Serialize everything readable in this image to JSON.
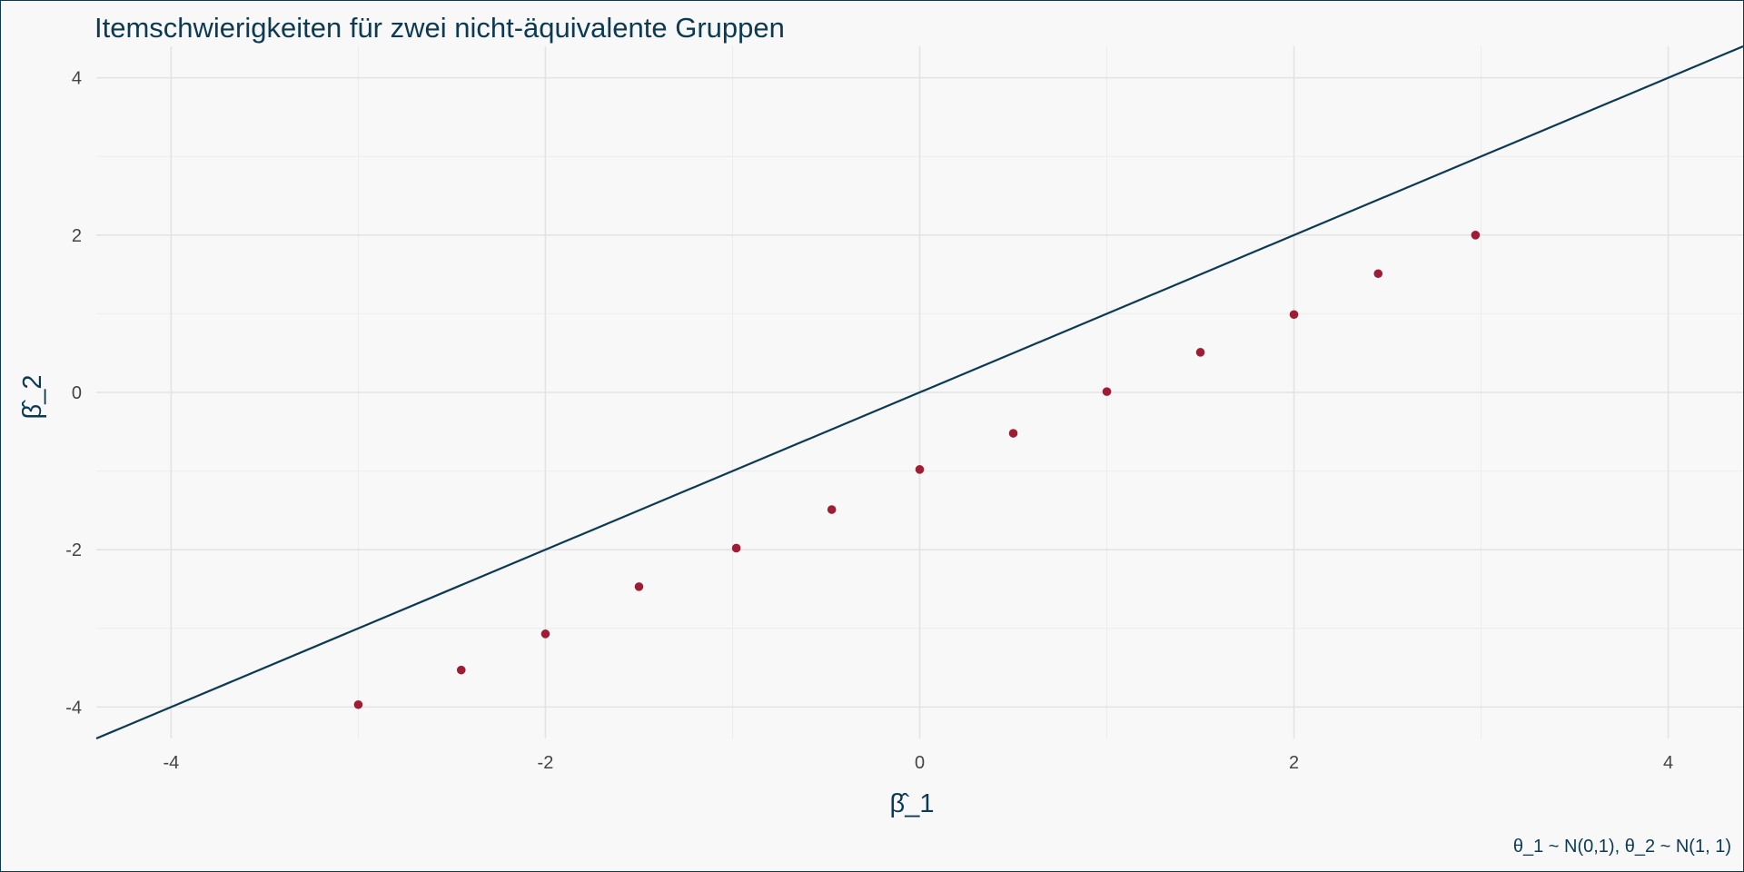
{
  "chart_data": {
    "type": "scatter",
    "title": "Itemschwierigkeiten für zwei nicht-äquivalente Gruppen",
    "xlabel": "β̂_1",
    "ylabel": "β̂_2",
    "caption": "θ_1 ~ N(0,1), θ_2 ~ N(1, 1)",
    "xlim": [
      -4.4,
      4.4
    ],
    "ylim": [
      -4.4,
      4.4
    ],
    "x_ticks": [
      -4,
      -2,
      0,
      2,
      4
    ],
    "y_ticks": [
      -4,
      -2,
      0,
      2,
      4
    ],
    "x_tick_labels": [
      "-4",
      "-2",
      "0",
      "2",
      "4"
    ],
    "y_tick_labels": [
      "-4",
      "-2",
      "0",
      "2",
      "4"
    ],
    "grid": true,
    "reference_line": {
      "slope": 1,
      "intercept": 0,
      "color": "#0b3a52"
    },
    "points": {
      "color": "#a01c34",
      "x": [
        -3.0,
        -2.45,
        -2.0,
        -1.5,
        -0.98,
        -0.47,
        0.0,
        0.5,
        1.0,
        1.5,
        2.0,
        2.45,
        2.97
      ],
      "y": [
        -3.97,
        -3.53,
        -3.07,
        -2.47,
        -1.98,
        -1.49,
        -0.98,
        -0.52,
        0.01,
        0.51,
        0.99,
        1.51,
        2.0
      ]
    }
  }
}
